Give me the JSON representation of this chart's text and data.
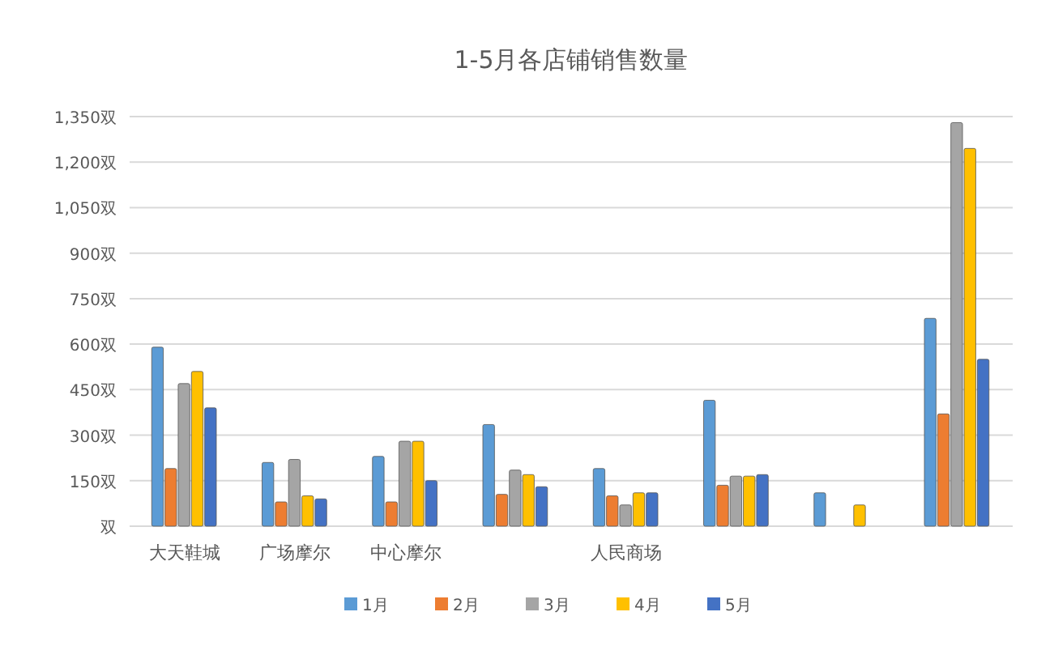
{
  "chart_data": {
    "type": "bar",
    "title": "1-5月各店铺销售数量",
    "categories": [
      "大天鞋城",
      "广场摩尔",
      "中心摩尔",
      null,
      "人民商场",
      null,
      null,
      null
    ],
    "series": [
      {
        "name": "1月",
        "color": "#5b9bd5",
        "values": [
          590,
          210,
          230,
          335,
          190,
          415,
          110,
          685
        ]
      },
      {
        "name": "2月",
        "color": "#ed7d31",
        "values": [
          190,
          80,
          80,
          105,
          100,
          135,
          null,
          370
        ]
      },
      {
        "name": "3月",
        "color": "#a5a5a5",
        "values": [
          470,
          220,
          280,
          185,
          70,
          165,
          null,
          1330
        ]
      },
      {
        "name": "4月",
        "color": "#ffc000",
        "values": [
          510,
          100,
          280,
          170,
          110,
          165,
          70,
          1245
        ]
      },
      {
        "name": "5月",
        "color": "#4472c4",
        "values": [
          390,
          90,
          150,
          130,
          110,
          170,
          null,
          550
        ]
      }
    ],
    "ylim": [
      0,
      1350
    ],
    "yticks": [
      {
        "value": 0,
        "label": "双"
      },
      {
        "value": 150,
        "label": "150双"
      },
      {
        "value": 300,
        "label": "300双"
      },
      {
        "value": 450,
        "label": "450双"
      },
      {
        "value": 600,
        "label": "600双"
      },
      {
        "value": 750,
        "label": "750双"
      },
      {
        "value": 900,
        "label": "900双"
      },
      {
        "value": 1050,
        "label": "1,050双"
      },
      {
        "value": 1200,
        "label": "1,200双"
      },
      {
        "value": 1350,
        "label": "1,350双"
      }
    ],
    "grid": "y",
    "legend": "bottom"
  }
}
